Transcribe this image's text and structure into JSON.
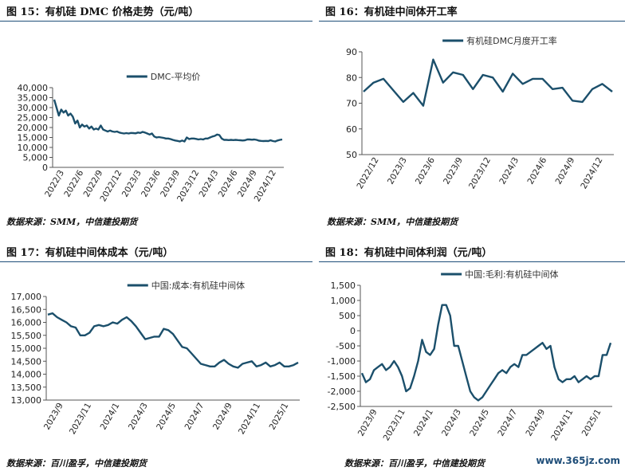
{
  "panels": [
    {
      "title": "图 15：有机硅 DMC 价格走势（元/吨）",
      "source": "数据来源：SMM，中信建投期货"
    },
    {
      "title": "图 16：有机硅中间体开工率",
      "source": "数据来源：SMM，中信建投期货"
    },
    {
      "title": "图 17：有机硅中间体成本（元/吨）",
      "source": "数据来源：百川盈孚，中信建投期货"
    },
    {
      "title": "图 18：有机硅中间体利润（元/吨）",
      "source": "数据来源：百川盈孚，中信建投期货"
    }
  ],
  "watermark": "www.365jz.com",
  "line_color": "#1b4f6b",
  "chart_data": [
    {
      "type": "line",
      "title": "",
      "xlabel": "",
      "ylabel": "",
      "ylim": [
        0,
        40000
      ],
      "yticks": [
        "0",
        "5,000",
        "10,000",
        "15,000",
        "20,000",
        "25,000",
        "30,000",
        "35,000",
        "40,000"
      ],
      "xticks": [
        "2022/3",
        "2022/6",
        "2022/9",
        "2022/12",
        "2023/3",
        "2023/6",
        "2023/9",
        "2023/12",
        "2024/3",
        "2024/6",
        "2024/9",
        "2024/12"
      ],
      "legend": "top",
      "series": [
        {
          "name": "DMC-平均价",
          "values": [
            34000,
            30000,
            26000,
            29000,
            27500,
            28500,
            26000,
            27000,
            25500,
            22000,
            23500,
            20000,
            21500,
            20500,
            21000,
            19500,
            20500,
            19000,
            19500,
            19000,
            21000,
            19000,
            18500,
            18000,
            18500,
            18000,
            17800,
            18000,
            17500,
            17200,
            17000,
            17200,
            17000,
            17300,
            17200,
            17100,
            17500,
            17300,
            17800,
            17500,
            17000,
            16500,
            17000,
            15500,
            15000,
            15200,
            15000,
            14800,
            14500,
            14500,
            14200,
            13800,
            13500,
            13300,
            13000,
            13500,
            13000,
            15000,
            14200,
            14500,
            14500,
            14300,
            14000,
            14200,
            14000,
            14500,
            14500,
            15000,
            15500,
            15800,
            16500,
            16200,
            14500,
            13800,
            13800,
            13700,
            13800,
            13700,
            13800,
            13700,
            13600,
            13500,
            13600,
            14000,
            14000,
            13900,
            14000,
            13800,
            13400,
            13300,
            13200,
            13300,
            13200,
            13600,
            13200,
            13000,
            13500,
            13800,
            14000
          ]
        }
      ]
    },
    {
      "type": "line",
      "title": "",
      "xlabel": "",
      "ylabel": "",
      "ylim": [
        50,
        90
      ],
      "yticks": [
        "50",
        "60",
        "70",
        "80",
        "90"
      ],
      "xticks": [
        "2022/12",
        "2023/3",
        "2023/6",
        "2023/9",
        "2023/12",
        "2024/3",
        "2024/6",
        "2024/9",
        "2024/12"
      ],
      "legend": "top",
      "series": [
        {
          "name": "有机硅DMC月度开工率",
          "values": [
            74.5,
            78,
            79.5,
            75,
            70.5,
            74,
            69,
            87,
            78,
            82,
            81,
            75.5,
            81,
            80,
            74.5,
            81.5,
            77.5,
            79.5,
            79.5,
            75.5,
            76,
            71,
            70.5,
            75.5,
            77.5,
            74.5
          ]
        }
      ]
    },
    {
      "type": "line",
      "title": "",
      "xlabel": "",
      "ylabel": "",
      "ylim": [
        13000,
        17000
      ],
      "yticks": [
        "13,000",
        "13,500",
        "14,000",
        "14,500",
        "15,000",
        "15,500",
        "16,000",
        "16,500",
        "17,000"
      ],
      "xticks": [
        "2023/9",
        "2023/11",
        "2024/1",
        "2024/3",
        "2024/5",
        "2024/7",
        "2024/9",
        "2024/11",
        "2025/1"
      ],
      "legend": "top",
      "series": [
        {
          "name": "中国:成本:有机硅中间体",
          "values": [
            16300,
            16350,
            16200,
            16100,
            16000,
            15850,
            15800,
            15500,
            15500,
            15600,
            15850,
            15900,
            15850,
            15900,
            16000,
            15950,
            16100,
            16200,
            16050,
            15850,
            15600,
            15350,
            15400,
            15450,
            15450,
            15750,
            15700,
            15550,
            15300,
            15050,
            15000,
            14800,
            14600,
            14400,
            14350,
            14300,
            14300,
            14450,
            14550,
            14400,
            14300,
            14250,
            14400,
            14450,
            14500,
            14300,
            14350,
            14450,
            14300,
            14350,
            14450,
            14300,
            14300,
            14350,
            14450
          ]
        }
      ]
    },
    {
      "type": "line",
      "title": "",
      "xlabel": "",
      "ylabel": "",
      "ylim": [
        -2500,
        1500
      ],
      "yticks": [
        "-2,500",
        "-2,000",
        "-1,500",
        "-1,000",
        "-500",
        "0",
        "500",
        "1,000",
        "1,500"
      ],
      "xticks": [
        "2023/9",
        "2023/11",
        "2024/1",
        "2024/3",
        "2024/5",
        "2024/7",
        "2024/9",
        "2024/11",
        "2025/1"
      ],
      "legend": "top",
      "series": [
        {
          "name": "中国:毛利:有机硅中间体",
          "values": [
            -1400,
            -1700,
            -1600,
            -1300,
            -1200,
            -1100,
            -1300,
            -1200,
            -1000,
            -1200,
            -1500,
            -2000,
            -1900,
            -1500,
            -1000,
            -300,
            -700,
            -800,
            -600,
            200,
            850,
            850,
            500,
            -500,
            -500,
            -1000,
            -1500,
            -2000,
            -2200,
            -2300,
            -2200,
            -2000,
            -1800,
            -1600,
            -1400,
            -1300,
            -1400,
            -1200,
            -1100,
            -1200,
            -800,
            -800,
            -700,
            -600,
            -500,
            -400,
            -600,
            -500,
            -1200,
            -1600,
            -1700,
            -1600,
            -1600,
            -1500,
            -1700,
            -1600,
            -1500,
            -1600,
            -1500,
            -1500,
            -800,
            -800,
            -400
          ]
        }
      ]
    }
  ]
}
